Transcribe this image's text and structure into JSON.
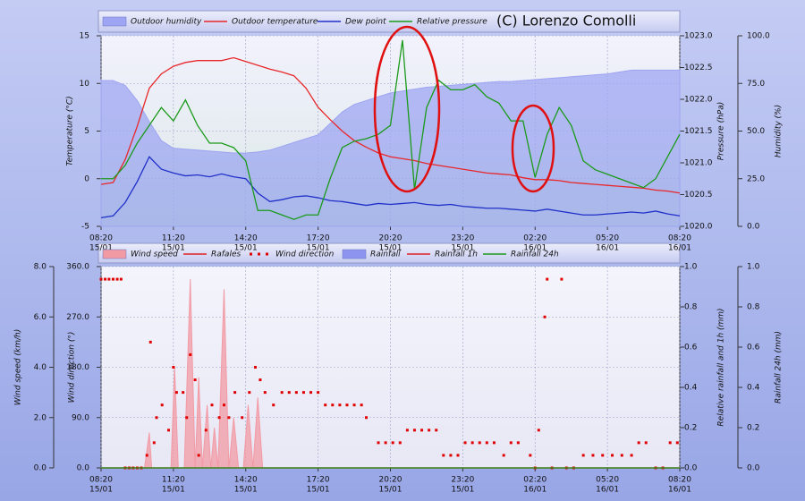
{
  "chart_data": [
    {
      "type": "line",
      "copyright": "(C) Lorenzo Comolli",
      "x": [
        0,
        0.5,
        1,
        1.5,
        2,
        2.5,
        3,
        3.5,
        4,
        4.5,
        5,
        5.5,
        6,
        6.5,
        7,
        7.5,
        8,
        8.5,
        9,
        9.5,
        10,
        10.5,
        11,
        11.5,
        12,
        12.5,
        13,
        13.5,
        14,
        14.5,
        15,
        15.5,
        16,
        16.5,
        17,
        17.5,
        18,
        18.5,
        19,
        19.5,
        20,
        20.5,
        21,
        21.5,
        22,
        22.5,
        23,
        23.5,
        24
      ],
      "xlim": [
        0,
        24
      ],
      "xticks": [
        {
          "value": 0,
          "label": "08:20",
          "date": "15/01"
        },
        {
          "value": 3,
          "label": "11:20",
          "date": "15/01"
        },
        {
          "value": 6,
          "label": "14:20",
          "date": "15/01"
        },
        {
          "value": 9,
          "label": "17:20",
          "date": "15/01"
        },
        {
          "value": 12,
          "label": "20:20",
          "date": "15/01"
        },
        {
          "value": 15,
          "label": "23:20",
          "date": "15/01"
        },
        {
          "value": 18,
          "label": "02:20",
          "date": "16/01"
        },
        {
          "value": 21,
          "label": "05:20",
          "date": "16/01"
        },
        {
          "value": 24,
          "label": "08:20",
          "date": "16/01"
        }
      ],
      "ylabel": "Temperature (°C)",
      "ylim": [
        -5,
        15
      ],
      "yticks": [
        -5,
        0,
        5,
        10,
        15
      ],
      "y2label": "Pressure (hPa)",
      "y2lim": [
        1020,
        1023
      ],
      "y2ticks": [
        {
          "value": 1020,
          "label": "1020.0"
        },
        {
          "value": 1020.5,
          "label": "1020.5"
        },
        {
          "value": 1021,
          "label": "1021.0"
        },
        {
          "value": 1021.5,
          "label": "1021.5"
        },
        {
          "value": 1022,
          "label": "1022.0"
        },
        {
          "value": 1022.5,
          "label": "1022.5"
        },
        {
          "value": 1023,
          "label": "1023.0"
        }
      ],
      "y3label": "Humidity (%)",
      "y3lim": [
        0,
        100
      ],
      "y3ticks": [
        {
          "value": 0,
          "label": "0.0"
        },
        {
          "value": 25,
          "label": "25.0"
        },
        {
          "value": 50,
          "label": "50.0"
        },
        {
          "value": 75,
          "label": "75.0"
        },
        {
          "value": 100,
          "label": "100.0"
        }
      ],
      "grid": true,
      "series": [
        {
          "name": "Outdoor humidity",
          "color": "#9ea5f2",
          "style": "area",
          "axis": "y3",
          "values": [
            76.5,
            76.5,
            74,
            66,
            55,
            45,
            41,
            40.5,
            40,
            39.5,
            39,
            38.5,
            38.5,
            39,
            40,
            42,
            44,
            46,
            48,
            54,
            60,
            64,
            66,
            68,
            70,
            71,
            72,
            73,
            73.5,
            74,
            74.5,
            75,
            75.5,
            76,
            76,
            76.5,
            77,
            77.5,
            78,
            78.5,
            79,
            79.5,
            80,
            81,
            82,
            82,
            82,
            82,
            82
          ]
        },
        {
          "name": "Outdoor temperature",
          "color": "#e8272a",
          "style": "line",
          "axis": "y",
          "values": [
            -0.6,
            -0.4,
            2,
            5.5,
            9.5,
            11,
            11.8,
            12.2,
            12.4,
            12.4,
            12.4,
            12.7,
            12.3,
            11.9,
            11.5,
            11.2,
            10.8,
            9.5,
            7.5,
            6.2,
            5,
            4,
            3.3,
            2.7,
            2.3,
            2.1,
            1.9,
            1.6,
            1.4,
            1.2,
            1.0,
            0.8,
            0.6,
            0.5,
            0.4,
            0.1,
            -0.1,
            -0.1,
            -0.2,
            -0.4,
            -0.5,
            -0.6,
            -0.7,
            -0.8,
            -0.9,
            -1.0,
            -1.2,
            -1.3,
            -1.5
          ]
        },
        {
          "name": "Dew point",
          "color": "#2030c8",
          "style": "line",
          "axis": "y",
          "values": [
            -4.1,
            -3.9,
            -2.5,
            -0.3,
            2.3,
            1.0,
            0.6,
            0.3,
            0.4,
            0.2,
            0.5,
            0.2,
            0,
            -1.5,
            -2.4,
            -2.2,
            -1.9,
            -1.8,
            -2.0,
            -2.3,
            -2.4,
            -2.6,
            -2.8,
            -2.6,
            -2.7,
            -2.6,
            -2.5,
            -2.7,
            -2.8,
            -2.7,
            -2.9,
            -3.0,
            -3.1,
            -3.1,
            -3.2,
            -3.3,
            -3.4,
            -3.2,
            -3.4,
            -3.6,
            -3.8,
            -3.8,
            -3.7,
            -3.6,
            -3.5,
            -3.6,
            -3.4,
            -3.7,
            -3.9
          ]
        },
        {
          "name": "Relative pressure",
          "color": "#1a9a1a",
          "style": "line",
          "axis": "y2",
          "values": [
            1020.75,
            1020.75,
            1020.96,
            1021.31,
            1021.59,
            1021.87,
            1021.66,
            1021.99,
            1021.59,
            1021.31,
            1021.31,
            1021.24,
            1021.03,
            1020.25,
            1020.25,
            1020.18,
            1020.11,
            1020.18,
            1020.18,
            1020.75,
            1021.24,
            1021.34,
            1021.38,
            1021.45,
            1021.59,
            1022.93,
            1020.58,
            1021.87,
            1022.3,
            1022.15,
            1022.15,
            1022.23,
            1022.04,
            1021.94,
            1021.66,
            1021.66,
            1020.77,
            1021.45,
            1021.87,
            1021.59,
            1021.03,
            1020.89,
            1020.82,
            1020.75,
            1020.68,
            1020.61,
            1020.75,
            1021.1,
            1021.45
          ]
        }
      ]
    },
    {
      "type": "line",
      "xlim": [
        0,
        24
      ],
      "xticks": [
        {
          "value": 0,
          "label": "08:20",
          "date": "15/01"
        },
        {
          "value": 3,
          "label": "11:20",
          "date": "15/01"
        },
        {
          "value": 6,
          "label": "14:20",
          "date": "15/01"
        },
        {
          "value": 9,
          "label": "17:20",
          "date": "15/01"
        },
        {
          "value": 12,
          "label": "20:20",
          "date": "15/01"
        },
        {
          "value": 15,
          "label": "23:20",
          "date": "15/01"
        },
        {
          "value": 18,
          "label": "02:20",
          "date": "16/01"
        },
        {
          "value": 21,
          "label": "05:20",
          "date": "16/01"
        },
        {
          "value": 24,
          "label": "08:20",
          "date": "16/01"
        }
      ],
      "ylabel": "Wind speed (km/h)",
      "ylim": [
        0,
        8
      ],
      "yticks": [
        {
          "value": 0,
          "label": "0.0"
        },
        {
          "value": 2,
          "label": "2.0"
        },
        {
          "value": 4,
          "label": "4.0"
        },
        {
          "value": 6,
          "label": "6.0"
        },
        {
          "value": 8,
          "label": "8.0"
        }
      ],
      "y2label": "Wind direction (°)",
      "y2lim": [
        0,
        360
      ],
      "y2ticks": [
        {
          "value": 0,
          "label": "0.0"
        },
        {
          "value": 90,
          "label": "90.0"
        },
        {
          "value": 180,
          "label": "180.0"
        },
        {
          "value": 270,
          "label": "270.0"
        },
        {
          "value": 360,
          "label": "360.0"
        }
      ],
      "y3label": "Relative rainfall and 1h (mm)",
      "y3lim": [
        0,
        1
      ],
      "y3ticks": [
        {
          "value": 0,
          "label": "0.0"
        },
        {
          "value": 0.2,
          "label": "0.2"
        },
        {
          "value": 0.4,
          "label": "0.4"
        },
        {
          "value": 0.6,
          "label": "0.6"
        },
        {
          "value": 0.8,
          "label": "0.8"
        },
        {
          "value": 1,
          "label": "1.0"
        }
      ],
      "y4label": "Rainfall 24h (mm)",
      "y4lim": [
        0,
        1
      ],
      "y4ticks": [
        {
          "value": 0,
          "label": "0.0"
        },
        {
          "value": 0.2,
          "label": "0.2"
        },
        {
          "value": 0.4,
          "label": "0.4"
        },
        {
          "value": 0.6,
          "label": "0.6"
        },
        {
          "value": 0.8,
          "label": "0.8"
        },
        {
          "value": 1,
          "label": "1.0"
        }
      ],
      "grid": true,
      "series": [
        {
          "name": "Wind speed",
          "color": "#f29aa4",
          "style": "area",
          "axis": "y",
          "x": [
            0,
            1.8,
            2.0,
            2.1,
            2.3,
            2.9,
            3.05,
            3.2,
            3.45,
            3.7,
            3.9,
            4.05,
            4.2,
            4.4,
            4.55,
            4.7,
            4.85,
            5.1,
            5.3,
            5.5,
            5.7,
            5.9,
            6.1,
            6.3,
            6.5,
            6.7,
            6.8,
            24
          ],
          "values": [
            0,
            0,
            1.4,
            0,
            0,
            0,
            4.0,
            0,
            0,
            7.5,
            0,
            3.6,
            0,
            2.5,
            0,
            1.6,
            0,
            7.1,
            0,
            2.0,
            0,
            0,
            2.5,
            0,
            2.8,
            0,
            0,
            0
          ]
        },
        {
          "name": "Rafales",
          "color": "#e02020",
          "style": "line",
          "axis": "y",
          "x": [
            0,
            24
          ],
          "values": [
            0,
            0
          ]
        },
        {
          "name": "Wind direction",
          "color": "#e00000",
          "style": "points",
          "axis": "y2",
          "x": [
            0,
            0.17,
            0.33,
            0.5,
            0.67,
            0.83,
            1.0,
            1.17,
            1.33,
            1.5,
            1.67,
            1.9,
            2.05,
            2.2,
            2.3,
            2.53,
            2.8,
            3.0,
            3.13,
            3.4,
            3.55,
            3.7,
            3.9,
            4.05,
            4.35,
            4.6,
            4.9,
            5.1,
            5.3,
            5.55,
            5.85,
            6.15,
            6.4,
            6.6,
            6.8,
            7.15,
            7.5,
            7.8,
            8.1,
            8.4,
            8.7,
            9.0,
            9.3,
            9.6,
            9.9,
            10.2,
            10.5,
            10.8,
            11.0,
            11.5,
            11.8,
            12.1,
            12.4,
            12.7,
            13.0,
            13.3,
            13.6,
            13.9,
            14.2,
            14.5,
            14.8,
            15.1,
            15.4,
            15.7,
            16.0,
            16.3,
            16.7,
            17.0,
            17.3,
            17.8,
            18.0,
            18.15,
            18.4,
            18.5,
            18.7,
            19.1,
            19.3,
            19.6,
            20.0,
            20.4,
            20.8,
            21.2,
            21.6,
            22.0,
            22.3,
            22.6,
            23.0,
            23.3,
            23.6,
            23.9
          ],
          "values": [
            337.5,
            337.5,
            337.5,
            337.5,
            337.5,
            337.5,
            0,
            0,
            0,
            0,
            0,
            22.5,
            225,
            45,
            90,
            112.5,
            67.5,
            180,
            135,
            135,
            90,
            202.5,
            157.5,
            22.5,
            67.5,
            112.5,
            90,
            112.5,
            90,
            135,
            90,
            135,
            180,
            157.5,
            135,
            112.5,
            135,
            135,
            135,
            135,
            135,
            135,
            112.5,
            112.5,
            112.5,
            112.5,
            112.5,
            112.5,
            90,
            45,
            45,
            45,
            45,
            67.5,
            67.5,
            67.5,
            67.5,
            67.5,
            22.5,
            22.5,
            22.5,
            45,
            45,
            45,
            45,
            45,
            22.5,
            45,
            45,
            22.5,
            0,
            67.5,
            270,
            337.5,
            0,
            337.5,
            0,
            0,
            22.5,
            22.5,
            22.5,
            22.5,
            22.5,
            22.5,
            45,
            45,
            0,
            0,
            45,
            45
          ]
        },
        {
          "name": "Rainfall",
          "color": "#8c94f0",
          "style": "area",
          "axis": "y3",
          "x": [
            0,
            24
          ],
          "values": [
            0,
            0
          ]
        },
        {
          "name": "Rainfall 1h",
          "color": "#e02020",
          "style": "line",
          "axis": "y3",
          "x": [
            0,
            24
          ],
          "values": [
            0,
            0
          ]
        },
        {
          "name": "Rainfall 24h",
          "color": "#1a9a1a",
          "style": "line",
          "axis": "y4",
          "x": [
            0,
            24
          ],
          "values": [
            0,
            0
          ]
        }
      ]
    }
  ]
}
